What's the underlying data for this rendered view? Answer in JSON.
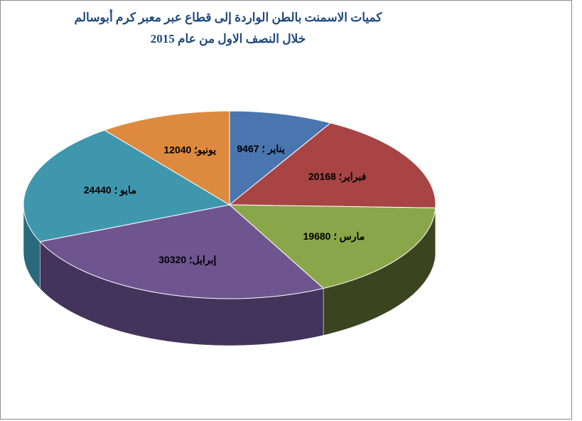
{
  "chart_data": {
    "type": "pie",
    "style": "3d",
    "title": "كميات الاسمنت بالطن الواردة إلى قطاع عبر معبر كرم أبوسالم",
    "subtitle": "خلال النصف الاول من عام 2015",
    "categories": [
      "يناير",
      "فبراير",
      "مارس",
      "إبرايل",
      "مايو",
      "يونيو"
    ],
    "values": [
      9467,
      20168,
      19680,
      30320,
      24440,
      12040
    ],
    "labels": [
      "يناير ؛ 9467",
      "فبراير؛ 20168",
      "مارس ؛ 19680",
      "إبرايل؛ 30320",
      "مايو ؛ 24440",
      "يونيو؛ 12040"
    ],
    "colors": [
      "#4a76b0",
      "#a84444",
      "#8aa64a",
      "#6f5590",
      "#3f97ae",
      "#dd8a3e"
    ],
    "side_colors": [
      "#2f4f7a",
      "#6e2c2c",
      "#3a4520",
      "#43345c",
      "#2a6a7c",
      "#9a5d27"
    ],
    "legend": "none"
  }
}
